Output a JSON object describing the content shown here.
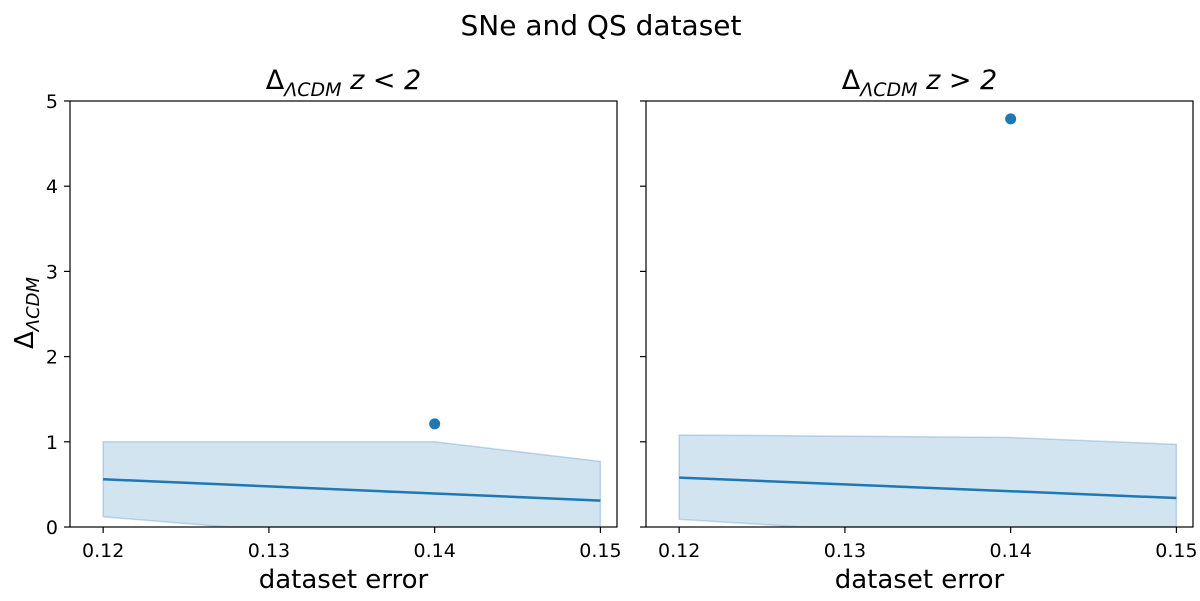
{
  "figure": {
    "suptitle": "SNe and QS dataset"
  },
  "chart_data": [
    {
      "type": "line",
      "title_main": "Δ",
      "title_sub": "ΛCDM",
      "title_rest": " z < 2",
      "xlabel": "dataset error",
      "ylabel_main": "Δ",
      "ylabel_sub": "ΛCDM",
      "xlim": [
        0.118,
        0.151
      ],
      "ylim": [
        0,
        5
      ],
      "xticks": [
        0.12,
        0.13,
        0.14,
        0.15
      ],
      "xtick_labels": [
        "0.12",
        "0.13",
        "0.14",
        "0.15"
      ],
      "yticks": [
        0,
        1,
        2,
        3,
        4,
        5
      ],
      "ytick_labels": [
        "0",
        "1",
        "2",
        "3",
        "4",
        "5"
      ],
      "grid": false,
      "colors": {
        "line": "#1f77b4",
        "band": "#1f77b4",
        "point": "#1f77b4"
      },
      "line": {
        "x": [
          0.12,
          0.15
        ],
        "y": [
          0.56,
          0.31
        ]
      },
      "band": {
        "x": [
          0.12,
          0.1275,
          0.14,
          0.15
        ],
        "upper": [
          1.0,
          1.0,
          1.0,
          0.77
        ],
        "lower": [
          0.12,
          0.0,
          0.0,
          0.0
        ]
      },
      "points": [
        {
          "x": 0.14,
          "y": 1.21
        }
      ]
    },
    {
      "type": "line",
      "title_main": "Δ",
      "title_sub": "ΛCDM",
      "title_rest": " z > 2",
      "xlabel": "dataset error",
      "xlim": [
        0.118,
        0.151
      ],
      "ylim": [
        0,
        5
      ],
      "xticks": [
        0.12,
        0.13,
        0.14,
        0.15
      ],
      "xtick_labels": [
        "0.12",
        "0.13",
        "0.14",
        "0.15"
      ],
      "yticks": [
        0,
        1,
        2,
        3,
        4,
        5
      ],
      "ytick_labels": [],
      "grid": false,
      "colors": {
        "line": "#1f77b4",
        "band": "#1f77b4",
        "point": "#1f77b4"
      },
      "line": {
        "x": [
          0.12,
          0.15
        ],
        "y": [
          0.58,
          0.34
        ]
      },
      "band": {
        "x": [
          0.12,
          0.1275,
          0.14,
          0.15
        ],
        "upper": [
          1.08,
          1.07,
          1.05,
          0.97
        ],
        "lower": [
          0.09,
          0.0,
          0.0,
          0.0
        ]
      },
      "points": [
        {
          "x": 0.14,
          "y": 4.79
        }
      ]
    }
  ]
}
